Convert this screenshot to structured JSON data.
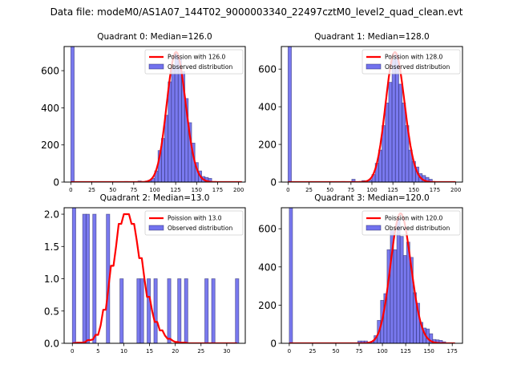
{
  "chart_data": {
    "title": "Data file: modeM0/AS1A07_144T02_9000003340_22497cztM0_level2_quad_clean.evt",
    "panels": [
      {
        "type": "bar",
        "title": "Quadrant 0: Median=126.0",
        "legend": {
          "line": "Poission with 126.0",
          "bar": "Observed distribution",
          "placement": "top-right"
        },
        "xlim": [
          -8,
          208
        ],
        "ylim": [
          0,
          730
        ],
        "xticks": [
          0,
          25,
          50,
          75,
          100,
          125,
          150,
          175,
          200
        ],
        "yticks": [
          0,
          200,
          400,
          600
        ],
        "ytick_labels": [
          "0",
          "200",
          "400",
          "600"
        ],
        "bin_width": 4,
        "bins": [
          0,
          64,
          80,
          92,
          96,
          100,
          104,
          108,
          112,
          116,
          120,
          124,
          128,
          132,
          136,
          140,
          144,
          148,
          152,
          156,
          160,
          164
        ],
        "counts": [
          2000,
          3,
          6,
          10,
          20,
          60,
          170,
          235,
          360,
          540,
          620,
          690,
          665,
          595,
          450,
          320,
          210,
          105,
          60,
          30,
          25,
          20
        ],
        "poisson_mean": 126.0,
        "poisson_peak": 700,
        "poisson_xrange": [
          0,
          204
        ]
      },
      {
        "type": "bar",
        "title": "Quadrant 1: Median=128.0",
        "legend": {
          "line": "Poission with 128.0",
          "bar": "Observed distribution",
          "placement": "top-right"
        },
        "xlim": [
          -8,
          208
        ],
        "ylim": [
          0,
          720
        ],
        "xticks": [
          0,
          25,
          50,
          75,
          100,
          125,
          150,
          175,
          200
        ],
        "yticks": [
          0,
          200,
          400,
          600
        ],
        "ytick_labels": [
          "0",
          "200",
          "400",
          "600"
        ],
        "bin_width": 4,
        "bins": [
          0,
          64,
          76,
          88,
          96,
          100,
          104,
          108,
          112,
          116,
          120,
          124,
          128,
          132,
          136,
          140,
          144,
          148,
          152,
          156,
          160,
          164,
          168
        ],
        "counts": [
          2000,
          3,
          15,
          8,
          12,
          40,
          100,
          170,
          300,
          420,
          530,
          650,
          680,
          520,
          420,
          300,
          170,
          110,
          80,
          45,
          35,
          25,
          15
        ],
        "poisson_mean": 128.0,
        "poisson_peak": 690,
        "poisson_xrange": [
          0,
          200
        ]
      },
      {
        "type": "bar",
        "title": "Quadrant 2: Median=13.0",
        "legend": {
          "line": "Poission with 13.0",
          "bar": "Observed distribution",
          "placement": "top-right"
        },
        "xlim": [
          -1.6,
          33.6
        ],
        "ylim": [
          0,
          2.1
        ],
        "xticks": [
          0,
          5,
          10,
          15,
          20,
          25,
          30
        ],
        "yticks": [
          0,
          0.5,
          1.0,
          1.5,
          2.0
        ],
        "ytick_labels": [
          "0.0",
          "0.5",
          "1.0",
          "1.5",
          "2.0"
        ],
        "bin_width": 0.66,
        "bins": [
          0,
          2.0,
          2.66,
          3.96,
          6.6,
          9.24,
          12.54,
          13.2,
          14.52,
          15.84,
          18.48,
          20.46,
          21.78,
          25.74,
          27.06,
          31.68
        ],
        "counts": [
          10,
          2,
          2,
          2,
          2,
          1,
          1,
          1,
          1,
          1,
          1,
          1,
          1,
          1,
          1,
          1
        ],
        "poisson_mean": 13.0,
        "poisson_curve_x": [
          0,
          1,
          2,
          2.5,
          3,
          3.5,
          4,
          4.5,
          5,
          5.5,
          6,
          6.5,
          7,
          7.5,
          8,
          8.5,
          9,
          9.5,
          10,
          10.5,
          11,
          11.5,
          12,
          12.5,
          13,
          13.5,
          14,
          14.5,
          15,
          15.5,
          16,
          16.5,
          17,
          17.5,
          18,
          18.5,
          19,
          19.5,
          20,
          20.5,
          21,
          21.5,
          22,
          22.5,
          23,
          23.5,
          24,
          25,
          26,
          28,
          30,
          32
        ],
        "poisson_curve_y": [
          0.0,
          0.01,
          0.01,
          0.02,
          0.05,
          0.05,
          0.06,
          0.13,
          0.13,
          0.28,
          0.52,
          0.52,
          0.85,
          1.2,
          1.2,
          1.5,
          1.85,
          1.85,
          2.0,
          2.0,
          2.0,
          1.85,
          1.85,
          1.6,
          1.32,
          1.32,
          1.0,
          0.72,
          0.72,
          0.5,
          0.33,
          0.33,
          0.2,
          0.2,
          0.12,
          0.07,
          0.07,
          0.04,
          0.02,
          0.02,
          0.01,
          0.01,
          0.01,
          0.0,
          0.0,
          0.0,
          0.0,
          0.0,
          0.0,
          0.0,
          0.0,
          0.0
        ]
      },
      {
        "type": "bar",
        "title": "Quadrant 3: Median=120.0",
        "legend": {
          "line": "Poission with 120.0",
          "bar": "Observed distribution",
          "placement": "top-right"
        },
        "xlim": [
          -8.5,
          186
        ],
        "ylim": [
          0,
          710
        ],
        "xticks": [
          0,
          25,
          50,
          75,
          100,
          125,
          150,
          175
        ],
        "yticks": [
          0,
          200,
          400,
          600
        ],
        "ytick_labels": [
          "0",
          "200",
          "400",
          "600"
        ],
        "bin_width": 3.5,
        "bins": [
          0,
          73.5,
          77,
          80.5,
          84,
          87.5,
          91,
          94.5,
          98,
          101.5,
          105,
          108.5,
          112,
          115.5,
          119,
          122.5,
          126,
          129.5,
          133,
          136.5,
          140,
          143.5,
          147,
          150.5,
          154,
          157.5,
          161,
          164.5
        ],
        "counts": [
          2000,
          12,
          12,
          12,
          5,
          10,
          40,
          120,
          225,
          260,
          490,
          590,
          490,
          650,
          560,
          460,
          530,
          450,
          265,
          210,
          110,
          80,
          75,
          50,
          20,
          18,
          15,
          8
        ],
        "poisson_mean": 120.0,
        "poisson_peak": 680,
        "poisson_xrange": [
          0,
          178
        ]
      }
    ]
  },
  "colors": {
    "bar_fill": "#7272ee",
    "bar_edge": "#2a2a6a",
    "poisson_line": "#ff0000"
  }
}
